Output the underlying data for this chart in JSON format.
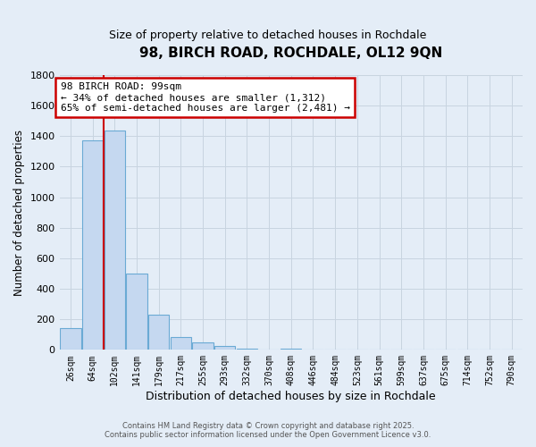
{
  "title": "98, BIRCH ROAD, ROCHDALE, OL12 9QN",
  "subtitle": "Size of property relative to detached houses in Rochdale",
  "xlabel": "Distribution of detached houses by size in Rochdale",
  "ylabel": "Number of detached properties",
  "bar_labels": [
    "26sqm",
    "64sqm",
    "102sqm",
    "141sqm",
    "179sqm",
    "217sqm",
    "255sqm",
    "293sqm",
    "332sqm",
    "370sqm",
    "408sqm",
    "446sqm",
    "484sqm",
    "523sqm",
    "561sqm",
    "599sqm",
    "637sqm",
    "675sqm",
    "714sqm",
    "752sqm",
    "790sqm"
  ],
  "bar_values": [
    140,
    1370,
    1435,
    500,
    230,
    85,
    50,
    25,
    10,
    0,
    5,
    0,
    0,
    0,
    0,
    0,
    0,
    0,
    0,
    0,
    0
  ],
  "bar_color": "#c5d8f0",
  "bar_edge_color": "#6aaad4",
  "red_line_color": "#cc0000",
  "grid_color": "#c8d4e0",
  "background_color": "#e4edf7",
  "ylim_max": 1800,
  "yticks": [
    0,
    200,
    400,
    600,
    800,
    1000,
    1200,
    1400,
    1600,
    1800
  ],
  "annotation_line1": "98 BIRCH ROAD: 99sqm",
  "annotation_line2": "← 34% of detached houses are smaller (1,312)",
  "annotation_line3": "65% of semi-detached houses are larger (2,481) →",
  "annotation_box_fc": "#ffffff",
  "annotation_box_ec": "#cc0000",
  "footer_line1": "Contains HM Land Registry data © Crown copyright and database right 2025.",
  "footer_line2": "Contains public sector information licensed under the Open Government Licence v3.0.",
  "property_bin_index": 2
}
